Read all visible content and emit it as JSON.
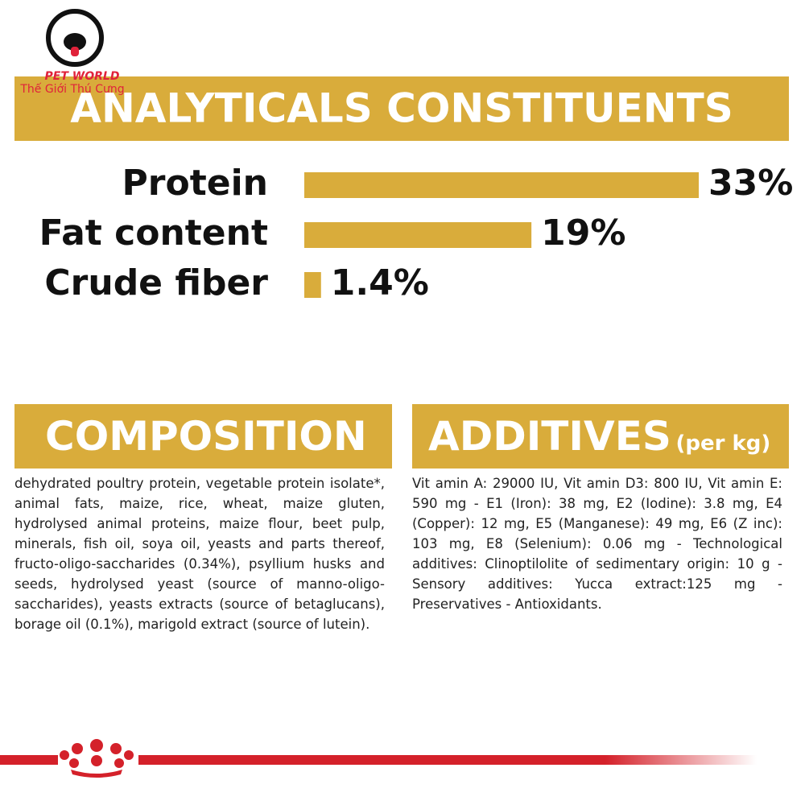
{
  "logo": {
    "brand": "PET WORLD",
    "tagline": "Thế Giới Thú Cưng"
  },
  "chart_data": {
    "type": "bar",
    "title": "ANALYTICALS CONSTITUENTS",
    "categories": [
      "Protein",
      "Fat content",
      "Crude fiber"
    ],
    "values": [
      33,
      19,
      1.4
    ],
    "value_labels": [
      "33%",
      "19%",
      "1.4%"
    ],
    "color": "#d9ac3b"
  },
  "composition": {
    "title": "COMPOSITION",
    "text": "dehydrated poultry protein, vegetable protein isolate*, animal fats, maize, rice, wheat, maize gluten, hydrolysed animal proteins, maize flour, beet pulp, minerals, fish oil, soya oil, yeasts and parts thereof, fructo-oligo-saccharides (0.34%), psyllium husks and seeds, hydrolysed yeast (source of manno-oligo-saccharides), yeasts extracts (source of betaglucans), borage oil (0.1%), marigold extract (source of lutein)."
  },
  "additives": {
    "title": "ADDITIVES",
    "unit": "(per kg)",
    "text": "Vit amin A: 29000 IU, Vit amin D3: 800 IU, Vit amin E: 590 mg - E1 (Iron): 38 mg, E2 (Iodine): 3.8 mg, E4 (Copper): 12 mg, E5 (Manganese): 49 mg, E6 (Z inc): 103 mg, E8 (Selenium): 0.06 mg - Technological additives: Clinoptilolite of sedimentary origin: 10 g - Sensory additives: Yucca extract:125 mg - Preservatives - Antioxidants."
  }
}
